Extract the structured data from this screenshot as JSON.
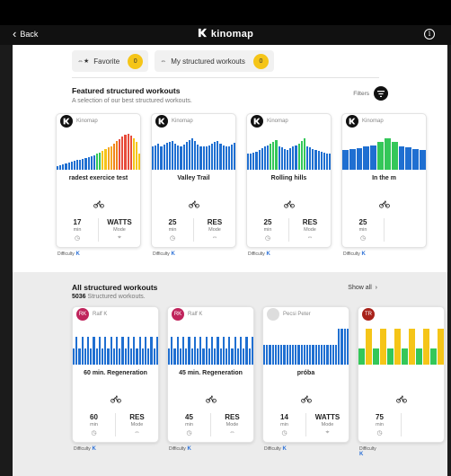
{
  "header": {
    "back_label": "Back",
    "brand": "kinomap",
    "info_icon": "info-icon"
  },
  "chips": [
    {
      "label": "Favorite",
      "count": "0"
    },
    {
      "label": "My structured workouts",
      "count": "0"
    }
  ],
  "featured": {
    "title": "Featured structured workouts",
    "subtitle": "A selection of our best structured workouts.",
    "filters_label": "Filters",
    "cards": [
      {
        "owner": "Kinomap",
        "title": "radest exercice test",
        "v1": "17",
        "u1": "min",
        "v2": "WATTS",
        "u2": "Mode",
        "bars": [
          10,
          12,
          14,
          16,
          18,
          20,
          22,
          24,
          26,
          28,
          30,
          32,
          34,
          36,
          40,
          44,
          48,
          52,
          56,
          60,
          66,
          72,
          78,
          84,
          88,
          92,
          86,
          80,
          70,
          40
        ],
        "colors": [
          "#1f6fd1",
          "#1f6fd1",
          "#1f6fd1",
          "#1f6fd1",
          "#1f6fd1",
          "#1f6fd1",
          "#1f6fd1",
          "#1f6fd1",
          "#1f6fd1",
          "#1f6fd1",
          "#1f6fd1",
          "#1f6fd1",
          "#1f6fd1",
          "#1f6fd1",
          "#34c759",
          "#34c759",
          "#f5c518",
          "#f5c518",
          "#f5a623",
          "#f5a623",
          "#f0851a",
          "#f0851a",
          "#e74c3c",
          "#e74c3c",
          "#e74c3c",
          "#e74c3c",
          "#e74c3c",
          "#f5c518",
          "#f5c518",
          "#f5c518"
        ]
      },
      {
        "owner": "Kinomap",
        "title": "Valley Trail",
        "v1": "25",
        "u1": "min",
        "v2": "RES",
        "u2": "Mode",
        "bars": [
          60,
          62,
          66,
          58,
          64,
          68,
          70,
          72,
          66,
          62,
          60,
          64,
          70,
          74,
          80,
          72,
          64,
          60,
          58,
          60,
          62,
          66,
          70,
          72,
          66,
          62,
          58,
          60,
          64,
          68
        ],
        "colors": [
          "#1f6fd1"
        ]
      },
      {
        "owner": "Kinomap",
        "title": "Rolling hills",
        "v1": "25",
        "u1": "min",
        "v2": "RES",
        "u2": "Mode",
        "bars": [
          40,
          42,
          44,
          46,
          50,
          54,
          58,
          62,
          66,
          70,
          74,
          60,
          56,
          52,
          50,
          54,
          58,
          62,
          66,
          72,
          80,
          60,
          56,
          52,
          50,
          48,
          46,
          44,
          42,
          40
        ],
        "colors": [
          "#1f6fd1",
          "#1f6fd1",
          "#1f6fd1",
          "#1f6fd1",
          "#1f6fd1",
          "#1f6fd1",
          "#1f6fd1",
          "#1f6fd1",
          "#34c759",
          "#34c759",
          "#34c759",
          "#1f6fd1",
          "#1f6fd1",
          "#1f6fd1",
          "#1f6fd1",
          "#1f6fd1",
          "#1f6fd1",
          "#1f6fd1",
          "#34c759",
          "#34c759",
          "#34c759",
          "#1f6fd1",
          "#1f6fd1",
          "#1f6fd1",
          "#1f6fd1",
          "#1f6fd1",
          "#1f6fd1",
          "#1f6fd1",
          "#1f6fd1",
          "#1f6fd1"
        ]
      },
      {
        "owner": "Kinomap",
        "title": "In the m",
        "v1": "25",
        "u1": "min",
        "v2": "",
        "u2": "",
        "bars": [
          50,
          52,
          54,
          58,
          62,
          70,
          80,
          70,
          60,
          56,
          52,
          50
        ],
        "colors": [
          "#1f6fd1",
          "#1f6fd1",
          "#1f6fd1",
          "#1f6fd1",
          "#1f6fd1",
          "#34c759",
          "#34c759",
          "#34c759",
          "#1f6fd1",
          "#1f6fd1",
          "#1f6fd1",
          "#1f6fd1"
        ]
      }
    ],
    "difficulty_label": "Difficulty"
  },
  "all": {
    "title": "All structured workouts",
    "count": "5036",
    "subtitle": "Structured workouts.",
    "show_all": "Show all",
    "cards": [
      {
        "initials": "RK",
        "avatar_color": "#c0245c",
        "owner": "Ralf K",
        "title": "60 min. Regeneration",
        "v1": "60",
        "u1": "min",
        "v2": "RES",
        "u2": "Mode",
        "bars": [
          40,
          70,
          40,
          70,
          40,
          70,
          40,
          70,
          40,
          70,
          40,
          70,
          40,
          70,
          40,
          70,
          40,
          70,
          40,
          70,
          40,
          70,
          40,
          70,
          40,
          70,
          40,
          70,
          40,
          70
        ],
        "colors": [
          "#1f6fd1"
        ]
      },
      {
        "initials": "RK",
        "avatar_color": "#c0245c",
        "owner": "Ralf K",
        "title": "45 min. Regeneration",
        "v1": "45",
        "u1": "min",
        "v2": "RES",
        "u2": "Mode",
        "bars": [
          40,
          70,
          40,
          70,
          40,
          70,
          40,
          70,
          40,
          70,
          40,
          70,
          40,
          70,
          40,
          70,
          40,
          70,
          40,
          70,
          40,
          70,
          40,
          70,
          40,
          70,
          40,
          70,
          40,
          70
        ],
        "colors": [
          "#1f6fd1"
        ]
      },
      {
        "initials": "",
        "avatar_color": "#dddddd",
        "owner": "Pecsi Peter",
        "title": "próba",
        "v1": "14",
        "u1": "min",
        "v2": "WATTS",
        "u2": "Mode",
        "bars": [
          50,
          50,
          50,
          50,
          50,
          50,
          50,
          50,
          50,
          50,
          50,
          50,
          50,
          50,
          50,
          50,
          50,
          50,
          50,
          50,
          50,
          50,
          50,
          50,
          50,
          50,
          90,
          90,
          90,
          90
        ],
        "colors": [
          "#1f6fd1"
        ]
      },
      {
        "initials": "TR",
        "avatar_color": "#a8221a",
        "owner": "",
        "title": "",
        "v1": "75",
        "u1": "min",
        "v2": "",
        "u2": "",
        "bars": [
          40,
          90,
          40,
          90,
          40,
          90,
          40,
          90,
          40,
          90,
          40,
          90
        ],
        "colors": [
          "#34c759",
          "#f5c518",
          "#34c759",
          "#f5c518",
          "#34c759",
          "#f5c518",
          "#34c759",
          "#f5c518",
          "#34c759",
          "#f5c518",
          "#34c759",
          "#f5c518"
        ]
      }
    ],
    "difficulty_label": "Difficulty"
  },
  "accent_colors": {
    "badge": "#f5c518",
    "bar_blue": "#1f6fd1",
    "bar_green": "#34c759"
  }
}
